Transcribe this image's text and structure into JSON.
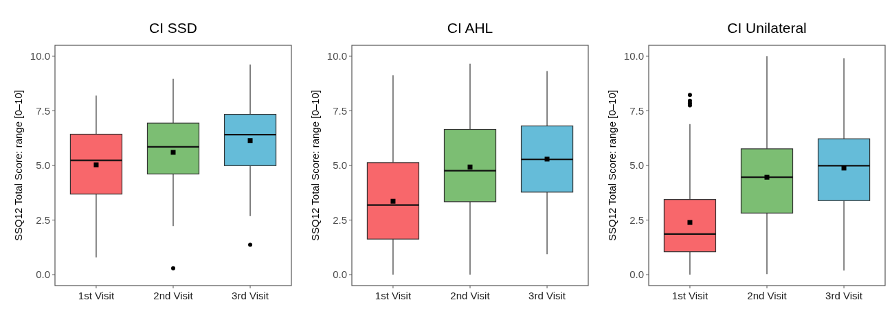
{
  "chart_data": [
    {
      "type": "box",
      "title": "CI SSD",
      "ylabel": "SSQ12 Total Score: range [0–10]",
      "categories": [
        "1st Visit",
        "2nd Visit",
        "3rd Visit"
      ],
      "colors": [
        "#f8676b",
        "#7cbe73",
        "#65bcd9"
      ],
      "boxes": [
        {
          "low": 0.79,
          "q1": 3.69,
          "median": 5.23,
          "q3": 6.43,
          "high": 8.2,
          "mean": 5.03
        },
        {
          "low": 2.23,
          "q1": 4.61,
          "median": 5.85,
          "q3": 6.94,
          "high": 8.97,
          "mean": 5.6,
          "outliers": [
            0.29
          ]
        },
        {
          "low": 2.68,
          "q1": 4.99,
          "median": 6.41,
          "q3": 7.34,
          "high": 9.62,
          "mean": 6.14,
          "outliers": [
            1.37
          ]
        }
      ],
      "ylim": [
        -0.5,
        10.5
      ],
      "yticks": [
        {
          "value": 0,
          "label": "0.0"
        },
        {
          "value": 2.5,
          "label": "2.5"
        },
        {
          "value": 5,
          "label": "5.0"
        },
        {
          "value": 7.5,
          "label": "7.5"
        },
        {
          "value": 10,
          "label": "10.0"
        }
      ]
    },
    {
      "type": "box",
      "title": "CI AHL",
      "ylabel": "SSQ12 Total Score: range [0–10]",
      "categories": [
        "1st Visit",
        "2nd Visit",
        "3rd Visit"
      ],
      "colors": [
        "#f8676b",
        "#7cbe73",
        "#65bcd9"
      ],
      "boxes": [
        {
          "low": 0,
          "q1": 1.63,
          "median": 3.19,
          "q3": 5.13,
          "high": 9.13,
          "mean": 3.36
        },
        {
          "low": 0,
          "q1": 3.34,
          "median": 4.76,
          "q3": 6.65,
          "high": 9.66,
          "mean": 4.93
        },
        {
          "low": 0.94,
          "q1": 3.78,
          "median": 5.28,
          "q3": 6.81,
          "high": 9.32,
          "mean": 5.29
        }
      ],
      "ylim": [
        -0.5,
        10.5
      ],
      "yticks": [
        {
          "value": 0,
          "label": "0.0"
        },
        {
          "value": 2.5,
          "label": "2.5"
        },
        {
          "value": 5,
          "label": "5.0"
        },
        {
          "value": 7.5,
          "label": "7.5"
        },
        {
          "value": 10,
          "label": "10.0"
        }
      ]
    },
    {
      "type": "box",
      "title": "CI Unilateral",
      "ylabel": "SSQ12 Total Score: range [0–10]",
      "categories": [
        "1st Visit",
        "2nd Visit",
        "3rd Visit"
      ],
      "colors": [
        "#f8676b",
        "#7cbe73",
        "#65bcd9"
      ],
      "boxes": [
        {
          "low": 0,
          "q1": 1.05,
          "median": 1.86,
          "q3": 3.44,
          "high": 6.89,
          "mean": 2.39,
          "outliers": [
            7.75,
            7.85,
            7.96,
            8.23
          ]
        },
        {
          "low": 0.03,
          "q1": 2.82,
          "median": 4.46,
          "q3": 5.76,
          "high": 10,
          "mean": 4.46
        },
        {
          "low": 0.19,
          "q1": 3.39,
          "median": 4.99,
          "q3": 6.22,
          "high": 9.9,
          "mean": 4.88
        }
      ],
      "ylim": [
        -0.5,
        10.5
      ],
      "yticks": [
        {
          "value": 0,
          "label": "0.0"
        },
        {
          "value": 2.5,
          "label": "2.5"
        },
        {
          "value": 5,
          "label": "5.0"
        },
        {
          "value": 7.5,
          "label": "7.5"
        },
        {
          "value": 10,
          "label": "10.0"
        }
      ]
    }
  ]
}
